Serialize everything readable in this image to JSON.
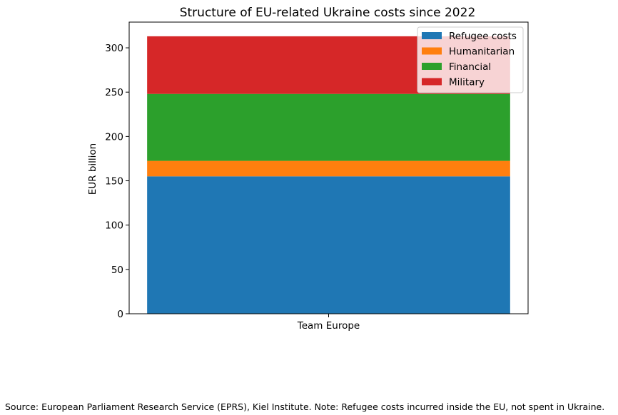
{
  "chart_data": {
    "type": "bar",
    "stacked": true,
    "title": "Structure of EU-related Ukraine costs since 2022",
    "xlabel": "",
    "ylabel": "EUR billion",
    "categories": [
      "Team Europe"
    ],
    "ylim": [
      0,
      329
    ],
    "yticks": [
      0,
      50,
      100,
      150,
      200,
      250,
      300
    ],
    "grid": false,
    "legend_position": "top-right",
    "series": [
      {
        "name": "Refugee costs",
        "values": [
          155
        ],
        "color": "#1f77b4"
      },
      {
        "name": "Humanitarian",
        "values": [
          17.5
        ],
        "color": "#ff7f0e"
      },
      {
        "name": "Financial",
        "values": [
          75.5
        ],
        "color": "#2ca02c"
      },
      {
        "name": "Military",
        "values": [
          65
        ],
        "color": "#d62728"
      }
    ]
  },
  "footnote": "Source: European Parliament Research Service (EPRS), Kiel Institute. Note: Refugee costs incurred inside the EU, not spent in Ukraine."
}
